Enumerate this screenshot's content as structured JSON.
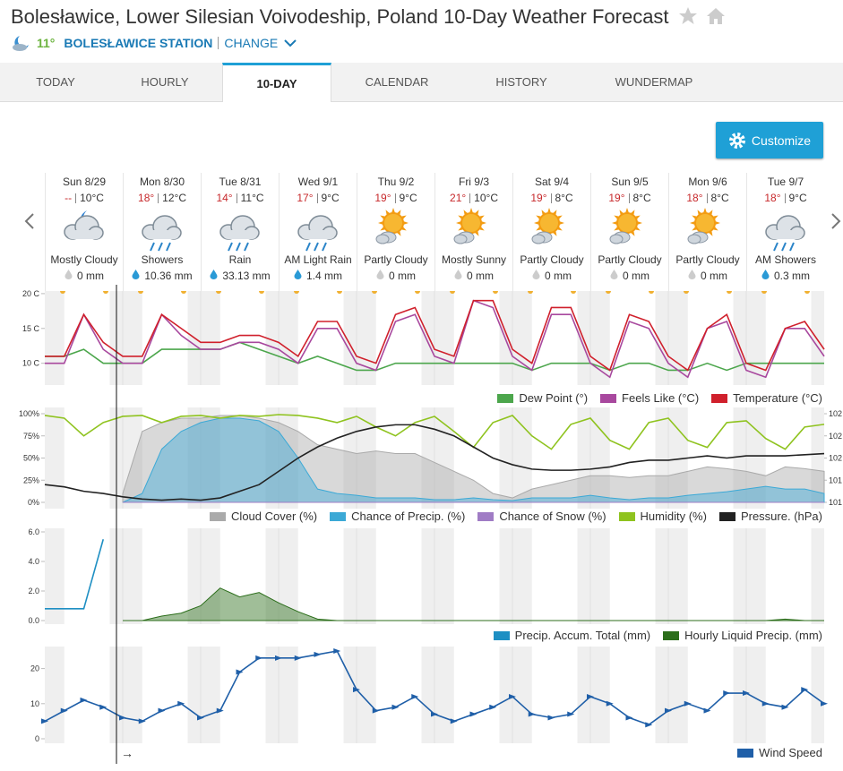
{
  "header": {
    "title": "Bolesławice, Lower Silesian Voivodeship, Poland 10-Day Weather Forecast",
    "current_temp": "11°",
    "station": "BOLESŁAWICE STATION",
    "change": "CHANGE"
  },
  "tabs": [
    "TODAY",
    "HOURLY",
    "10-DAY",
    "CALENDAR",
    "HISTORY",
    "WUNDERMAP"
  ],
  "active_tab": 2,
  "customize": "Customize",
  "days": [
    {
      "day": "Sun 8/29",
      "hi": "--",
      "lo": "10°C",
      "condition": "Mostly Cloudy",
      "precip": "0 mm"
    },
    {
      "day": "Mon 8/30",
      "hi": "18°",
      "lo": "12°C",
      "condition": "Showers",
      "precip": "10.36 mm"
    },
    {
      "day": "Tue 8/31",
      "hi": "14°",
      "lo": "11°C",
      "condition": "Rain",
      "precip": "33.13 mm"
    },
    {
      "day": "Wed 9/1",
      "hi": "17°",
      "lo": "9°C",
      "condition": "AM Light Rain",
      "precip": "1.4 mm"
    },
    {
      "day": "Thu 9/2",
      "hi": "19°",
      "lo": "9°C",
      "condition": "Partly Cloudy",
      "precip": "0 mm"
    },
    {
      "day": "Fri 9/3",
      "hi": "21°",
      "lo": "10°C",
      "condition": "Mostly Sunny",
      "precip": "0 mm"
    },
    {
      "day": "Sat 9/4",
      "hi": "19°",
      "lo": "8°C",
      "condition": "Partly Cloudy",
      "precip": "0 mm"
    },
    {
      "day": "Sun 9/5",
      "hi": "19°",
      "lo": "8°C",
      "condition": "Partly Cloudy",
      "precip": "0 mm"
    },
    {
      "day": "Mon 9/6",
      "hi": "18°",
      "lo": "8°C",
      "condition": "Partly Cloudy",
      "precip": "0 mm"
    },
    {
      "day": "Tue 9/7",
      "hi": "18°",
      "lo": "9°C",
      "condition": "AM Showers",
      "precip": "0.3 mm"
    }
  ],
  "current_time_arrow": "→",
  "chart_data": [
    {
      "type": "line",
      "ylim": [
        7,
        20.5
      ],
      "yticks": [
        {
          "value": 10,
          "label": "10 C"
        },
        {
          "value": 15,
          "label": "15 C"
        },
        {
          "value": 20,
          "label": "20 C"
        }
      ],
      "series": [
        {
          "name": "Dew Point (°)",
          "color": "#4ca64c",
          "values": [
            11,
            11,
            12,
            10,
            10,
            10,
            12,
            12,
            12,
            12,
            13,
            12,
            11,
            10,
            11,
            10,
            9,
            9,
            10,
            10,
            10,
            10,
            10,
            10,
            10,
            9,
            10,
            10,
            10,
            9,
            10,
            10,
            9,
            9,
            10,
            9,
            10,
            10,
            10,
            10,
            10
          ]
        },
        {
          "name": "Feels Like (°C)",
          "color": "#a8489e",
          "values": [
            10,
            10,
            17,
            12,
            10,
            10,
            17,
            14,
            12,
            12,
            13,
            13,
            12,
            10,
            15,
            15,
            10,
            9,
            16,
            17,
            11,
            10,
            19,
            18,
            11,
            9,
            17,
            17,
            10,
            8,
            16,
            15,
            10,
            8,
            15,
            16,
            9,
            8,
            15,
            15,
            11
          ]
        },
        {
          "name": "Temperature (°C)",
          "color": "#d0202c",
          "values": [
            11,
            11,
            17,
            13,
            11,
            11,
            17,
            15,
            13,
            13,
            14,
            14,
            13,
            11,
            16,
            16,
            11,
            10,
            17,
            18,
            12,
            11,
            19,
            19,
            12,
            10,
            18,
            18,
            11,
            9,
            17,
            16,
            11,
            9,
            15,
            17,
            10,
            9,
            15,
            16,
            12
          ]
        }
      ]
    },
    {
      "type": "line",
      "ylim": [
        0,
        100
      ],
      "yticks": [
        {
          "value": 0,
          "label": "0%"
        },
        {
          "value": 25,
          "label": "25%"
        },
        {
          "value": 50,
          "label": "50%"
        },
        {
          "value": 75,
          "label": "75%"
        },
        {
          "value": 100,
          "label": "100%"
        }
      ],
      "y2lim": [
        1012,
        1020
      ],
      "y2ticks": [
        {
          "value": 1012,
          "label": "101"
        },
        {
          "value": 1014,
          "label": "101"
        },
        {
          "value": 1016,
          "label": "102"
        },
        {
          "value": 1018,
          "label": "102"
        },
        {
          "value": 1020,
          "label": "102"
        }
      ],
      "series": [
        {
          "name": "Cloud Cover (%)",
          "color": "#aaaaaa",
          "area": true,
          "values": [
            null,
            null,
            null,
            null,
            10,
            80,
            90,
            95,
            95,
            98,
            98,
            95,
            90,
            80,
            65,
            60,
            55,
            58,
            55,
            55,
            45,
            35,
            25,
            10,
            5,
            15,
            20,
            25,
            30,
            30,
            28,
            30,
            30,
            35,
            40,
            38,
            35,
            30,
            40,
            38,
            35
          ]
        },
        {
          "name": "Chance of Precip. (%)",
          "color": "#3ca9d6",
          "area": true,
          "values": [
            null,
            null,
            null,
            null,
            0,
            10,
            60,
            80,
            90,
            95,
            95,
            92,
            80,
            50,
            15,
            10,
            8,
            5,
            5,
            5,
            3,
            3,
            5,
            3,
            2,
            5,
            5,
            5,
            8,
            5,
            3,
            5,
            5,
            8,
            10,
            12,
            15,
            18,
            15,
            15,
            10
          ]
        },
        {
          "name": "Chance of Snow (%)",
          "color": "#a07cc5",
          "area": true,
          "values": [
            null,
            null,
            null,
            null,
            0,
            0,
            0,
            0,
            0,
            0,
            0,
            0,
            0,
            0,
            0,
            0,
            0,
            0,
            0,
            0,
            0,
            0,
            0,
            0,
            0,
            0,
            0,
            0,
            0,
            0,
            0,
            0,
            0,
            0,
            0,
            0,
            0,
            0,
            0,
            0,
            0
          ]
        },
        {
          "name": "Humidity (%)",
          "color": "#8fc31f",
          "values": [
            98,
            95,
            75,
            90,
            97,
            98,
            90,
            97,
            98,
            95,
            98,
            97,
            99,
            98,
            95,
            90,
            97,
            85,
            75,
            90,
            97,
            80,
            62,
            90,
            98,
            75,
            60,
            88,
            95,
            70,
            60,
            90,
            95,
            70,
            62,
            90,
            92,
            72,
            60,
            85,
            88
          ]
        },
        {
          "name": "Pressure. (hPa)",
          "color": "#222222",
          "axis": "y2",
          "values": [
            1013.6,
            1013.4,
            1013,
            1012.8,
            1012.5,
            1012.3,
            1012.2,
            1012.3,
            1012.2,
            1012.4,
            1013,
            1013.6,
            1014.8,
            1016,
            1017,
            1017.8,
            1018.4,
            1018.8,
            1019,
            1019,
            1018.6,
            1018,
            1017,
            1016,
            1015.4,
            1015,
            1014.9,
            1014.9,
            1015,
            1015.2,
            1015.6,
            1015.8,
            1015.8,
            1016,
            1016.2,
            1016,
            1016.2,
            1016.2,
            1016.2,
            1016.3,
            1016.4
          ]
        }
      ]
    },
    {
      "type": "line",
      "ylim": [
        0,
        6
      ],
      "yticks": [
        {
          "value": 0,
          "label": "0.0"
        },
        {
          "value": 2,
          "label": "2.0"
        },
        {
          "value": 4,
          "label": "4.0"
        },
        {
          "value": 6,
          "label": "6.0"
        }
      ],
      "series": [
        {
          "name": "Precip. Accum. Total (mm)",
          "color": "#1e8fc3",
          "values": [
            0.8,
            0.8,
            0.8,
            5.5,
            null,
            null,
            null,
            null,
            null,
            null,
            null,
            null,
            null,
            null,
            null,
            null,
            null,
            null,
            null,
            null,
            null,
            null,
            null,
            null,
            null,
            null,
            null,
            null,
            null,
            null,
            null,
            null,
            null,
            null,
            null,
            null,
            null,
            null,
            null,
            null,
            null
          ]
        },
        {
          "name": "Hourly Liquid Precip. (mm)",
          "color": "#2c6e1b",
          "area": true,
          "values": [
            null,
            null,
            null,
            null,
            0,
            0,
            0.3,
            0.5,
            1,
            2.2,
            1.6,
            1.9,
            1.2,
            0.6,
            0.1,
            0,
            0,
            0,
            0,
            0,
            0,
            0,
            0,
            0,
            0,
            0,
            0,
            0,
            0,
            0,
            0,
            0,
            0,
            0,
            0,
            0,
            0,
            0,
            0.1,
            0,
            0
          ]
        }
      ]
    },
    {
      "type": "line",
      "ylim": [
        0,
        25
      ],
      "yticks": [
        0,
        10,
        20
      ],
      "series": [
        {
          "name": "Wind Speed",
          "color": "#1f5fa8",
          "markers": true,
          "values": [
            5,
            8,
            11,
            9,
            6,
            5,
            8,
            10,
            6,
            8,
            19,
            23,
            23,
            23,
            24,
            25,
            14,
            8,
            9,
            12,
            7,
            5,
            7,
            9,
            12,
            7,
            6,
            7,
            12,
            10,
            6,
            4,
            8,
            10,
            8,
            13,
            13,
            10,
            9,
            14,
            10
          ]
        }
      ]
    }
  ]
}
